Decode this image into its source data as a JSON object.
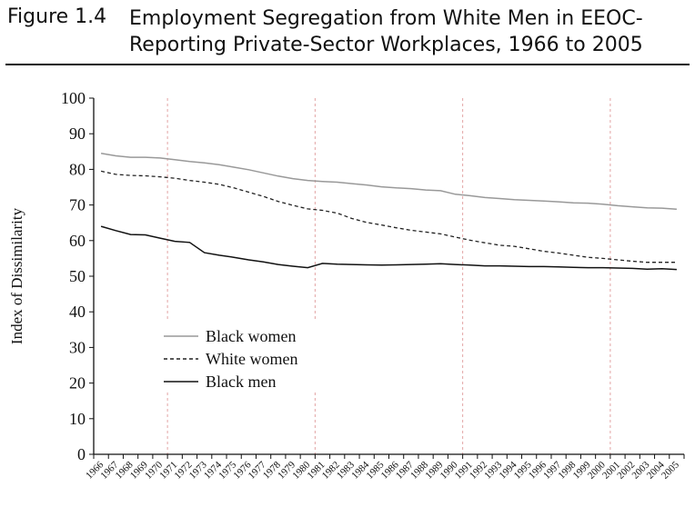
{
  "figure": {
    "number": "Figure 1.4",
    "title_line1": "Employment Segregation from White Men in EEOC-",
    "title_line2": "Reporting Private-Sector Workplaces, 1966 to 2005"
  },
  "chart_data": {
    "type": "line",
    "title": "Employment Segregation from White Men in EEOC-Reporting Private-Sector Workplaces, 1966 to 2005",
    "xlabel": "",
    "ylabel": "Index of Dissimilarity",
    "ylim": [
      0,
      100
    ],
    "yticks": [
      0,
      10,
      20,
      30,
      40,
      50,
      60,
      70,
      80,
      90,
      100
    ],
    "grid": "vertical dashed lines at 1971, 1981, 1991, 2001",
    "legend_position": "lower-left inside plot",
    "x": [
      "1966",
      "1967",
      "1968",
      "1969",
      "1970",
      "1971",
      "1972",
      "1973",
      "1974",
      "1975",
      "1976",
      "1977",
      "1978",
      "1979",
      "1980",
      "1981",
      "1982",
      "1983",
      "1984",
      "1985",
      "1986",
      "1987",
      "1988",
      "1989",
      "1990",
      "1991",
      "1992",
      "1993",
      "1994",
      "1995",
      "1996",
      "1997",
      "1998",
      "1999",
      "2000",
      "2001",
      "2002",
      "2003",
      "2004",
      "2005"
    ],
    "series": [
      {
        "name": "Black women",
        "style": "solid",
        "color": "#999999",
        "values": [
          84.5,
          83.8,
          83.4,
          83.4,
          83.2,
          82.7,
          82.2,
          81.8,
          81.3,
          80.6,
          79.9,
          79.0,
          78.1,
          77.4,
          76.9,
          76.6,
          76.4,
          76.0,
          75.6,
          75.1,
          74.8,
          74.6,
          74.2,
          74.0,
          73.0,
          72.6,
          72.1,
          71.8,
          71.5,
          71.3,
          71.1,
          70.9,
          70.6,
          70.5,
          70.2,
          69.8,
          69.5,
          69.2,
          69.1,
          68.8
        ]
      },
      {
        "name": "White women",
        "style": "dashed",
        "color": "#222222",
        "values": [
          79.5,
          78.6,
          78.3,
          78.2,
          77.9,
          77.5,
          76.9,
          76.4,
          75.8,
          74.8,
          73.6,
          72.4,
          71.0,
          69.9,
          68.9,
          68.5,
          67.7,
          66.2,
          65.1,
          64.4,
          63.6,
          62.9,
          62.4,
          61.9,
          61.0,
          60.1,
          59.4,
          58.7,
          58.4,
          57.7,
          57.0,
          56.5,
          55.9,
          55.3,
          55.0,
          54.6,
          54.2,
          53.9,
          53.9,
          53.9
        ]
      },
      {
        "name": "Black men",
        "style": "solid",
        "color": "#111111",
        "values": [
          64.0,
          62.8,
          61.7,
          61.6,
          60.7,
          59.8,
          59.5,
          56.6,
          55.9,
          55.3,
          54.6,
          54.0,
          53.3,
          52.8,
          52.4,
          53.6,
          53.4,
          53.3,
          53.2,
          53.1,
          53.2,
          53.3,
          53.4,
          53.5,
          53.3,
          53.1,
          52.9,
          52.9,
          52.8,
          52.7,
          52.7,
          52.6,
          52.5,
          52.4,
          52.4,
          52.3,
          52.2,
          52.0,
          52.1,
          51.9
        ]
      }
    ]
  }
}
